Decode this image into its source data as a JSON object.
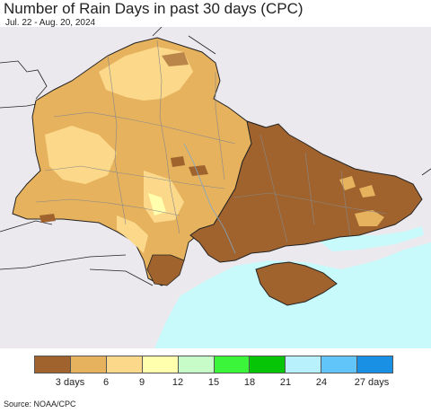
{
  "header": {
    "title": "Number of Rain Days in past 30 days (CPC)",
    "date_range": "Jul. 22 - Aug. 20, 2024"
  },
  "legend": {
    "colors": [
      "#a0632e",
      "#e6b25e",
      "#fcd98a",
      "#ffffae",
      "#c7fbc8",
      "#3bf53a",
      "#06c406",
      "#b8f0fc",
      "#62c5f9",
      "#1a90e4"
    ],
    "ticks": [
      "3 days",
      "6",
      "9",
      "12",
      "15",
      "18",
      "21",
      "24",
      "27 days"
    ]
  },
  "map_colors": {
    "sea": "#c8fafb",
    "land_outside": "#ece9ee",
    "border": "#222222",
    "admin_line": "#888888"
  },
  "footer": {
    "source": "Source: NOAA/CPC"
  }
}
